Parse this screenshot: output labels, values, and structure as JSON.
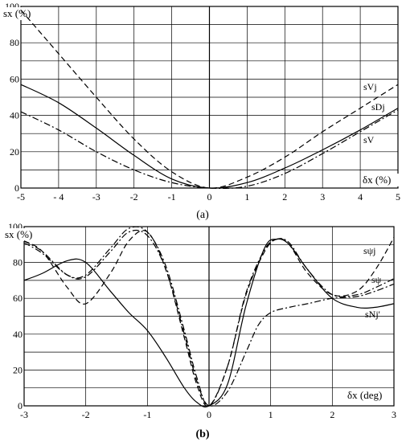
{
  "chart_data": [
    {
      "type": "line",
      "caption": "(a)",
      "ylabel": "sx (%)",
      "xlabel": "δx (%)",
      "xlim": [
        -5,
        5
      ],
      "ylim": [
        0,
        100
      ],
      "xticks": [
        "-5",
        "- 4",
        "-3",
        "-2",
        "-1",
        "0",
        "1",
        "2",
        "3",
        "4",
        "5"
      ],
      "yticks": [
        "0",
        "20",
        "40",
        "60",
        "80",
        "100"
      ],
      "grid": true,
      "series": [
        {
          "name": "sVj",
          "style": "dashed",
          "x": [
            -5,
            -4,
            -3,
            -2,
            -1,
            0,
            1,
            2,
            3,
            4,
            5
          ],
          "y": [
            98,
            74,
            50,
            27,
            9,
            0,
            6,
            17,
            31,
            44,
            57
          ]
        },
        {
          "name": "sDj",
          "style": "solid",
          "x": [
            -5,
            -4,
            -3,
            -2,
            -1,
            0,
            1,
            2,
            3,
            4,
            5
          ],
          "y": [
            57,
            47,
            33,
            18,
            5,
            0,
            3,
            11,
            21,
            32,
            44
          ]
        },
        {
          "name": "sV",
          "style": "dashdot",
          "x": [
            -5,
            -4,
            -3,
            -2,
            -1,
            0,
            1,
            2,
            3,
            4,
            5
          ],
          "y": [
            42,
            32,
            20,
            10,
            3,
            0,
            1,
            8,
            19,
            31,
            43
          ]
        }
      ]
    },
    {
      "type": "line",
      "caption": "(b)",
      "ylabel": "sx (%)",
      "xlabel": "δx (deg)",
      "xlim": [
        -3,
        3
      ],
      "ylim": [
        0,
        100
      ],
      "xticks": [
        "-3",
        "-2",
        "-1",
        "0",
        "1",
        "2",
        "3"
      ],
      "yticks": [
        "0",
        "20",
        "40",
        "60",
        "80",
        "100"
      ],
      "grid": true,
      "series": [
        {
          "name": "sψj",
          "style": "dashed",
          "x": [
            -3,
            -2.7,
            -2.3,
            -2,
            -1.6,
            -1.3,
            -1,
            -0.7,
            -0.4,
            -0.2,
            0,
            0.3,
            0.6,
            0.9,
            1.1,
            1.3,
            1.6,
            2,
            2.4,
            2.7,
            3
          ],
          "y": [
            92,
            86,
            66,
            57,
            74,
            92,
            97,
            76,
            38,
            12,
            0,
            22,
            62,
            86,
            93,
            90,
            74,
            62,
            64,
            76,
            94
          ]
        },
        {
          "name": "sψ",
          "style": "dashdot",
          "x": [
            -3,
            -2.7,
            -2.3,
            -2,
            -1.6,
            -1.3,
            -1,
            -0.7,
            -0.4,
            -0.2,
            0,
            0.3,
            0.6,
            0.9,
            1.1,
            1.3,
            1.6,
            2,
            2.4,
            2.7,
            3
          ],
          "y": [
            91,
            85,
            73,
            73,
            88,
            99,
            97,
            78,
            42,
            16,
            0,
            22,
            63,
            87,
            93,
            91,
            76,
            62,
            62,
            66,
            71
          ]
        },
        {
          "name": "sNj'",
          "style": "solid",
          "x": [
            -3,
            -2.7,
            -2.3,
            -2,
            -1.6,
            -1.3,
            -1,
            -0.7,
            -0.4,
            -0.2,
            0,
            0.3,
            0.6,
            0.9,
            1.1,
            1.3,
            1.6,
            2,
            2.4,
            2.7,
            3
          ],
          "y": [
            70,
            74,
            81,
            80,
            64,
            52,
            42,
            27,
            10,
            2,
            0,
            12,
            56,
            88,
            93,
            90,
            76,
            60,
            55,
            55,
            57
          ]
        },
        {
          "name": "",
          "style": "dashdot",
          "x": [
            -3,
            -2.7,
            -2.3,
            -2,
            -1.6,
            -1.3,
            -1,
            -0.7,
            -0.4,
            -0.2,
            0,
            0.3,
            0.6,
            0.8,
            1,
            1.3,
            1.6,
            2,
            2.4,
            2.7,
            3
          ],
          "y": [
            92,
            86,
            73,
            72,
            86,
            97,
            95,
            76,
            40,
            14,
            0,
            8,
            30,
            45,
            52,
            55,
            57,
            60,
            61,
            64,
            68
          ]
        }
      ]
    }
  ]
}
